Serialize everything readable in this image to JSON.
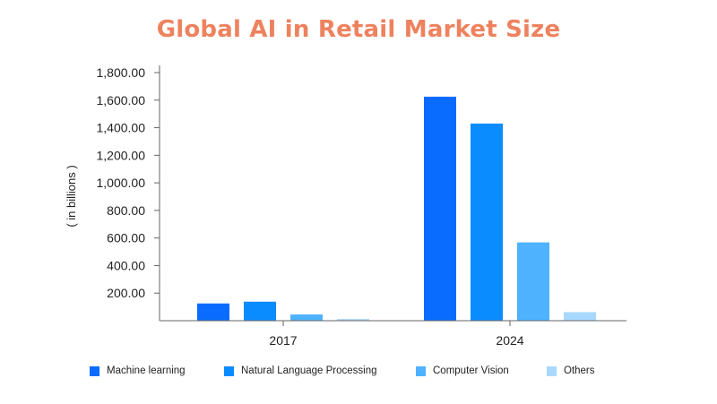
{
  "chart_data": {
    "type": "bar",
    "title": "Global AI in Retail Market Size",
    "ylabel": "( in billions )",
    "xlabel": "",
    "categories": [
      "2017",
      "2024"
    ],
    "series": [
      {
        "name": "Machine learning",
        "color": "#0a6cff",
        "values": [
          125,
          1625
        ]
      },
      {
        "name": "Natural Language Processing",
        "color": "#0a8cff",
        "values": [
          138,
          1430
        ]
      },
      {
        "name": "Computer Vision",
        "color": "#4fb2ff",
        "values": [
          45,
          568
        ]
      },
      {
        "name": "Others",
        "color": "#a9d8ff",
        "values": [
          12,
          62
        ]
      }
    ],
    "ylim": [
      0,
      1800
    ],
    "yticks": [
      "200.00",
      "400.00",
      "600.00",
      "800.00",
      "1,000.00",
      "1,200.00",
      "1,400.00",
      "1,600.00",
      "1,800.00"
    ],
    "ytick_values": [
      200,
      400,
      600,
      800,
      1000,
      1200,
      1400,
      1600,
      1800
    ],
    "grid": false,
    "legend_position": "bottom"
  }
}
